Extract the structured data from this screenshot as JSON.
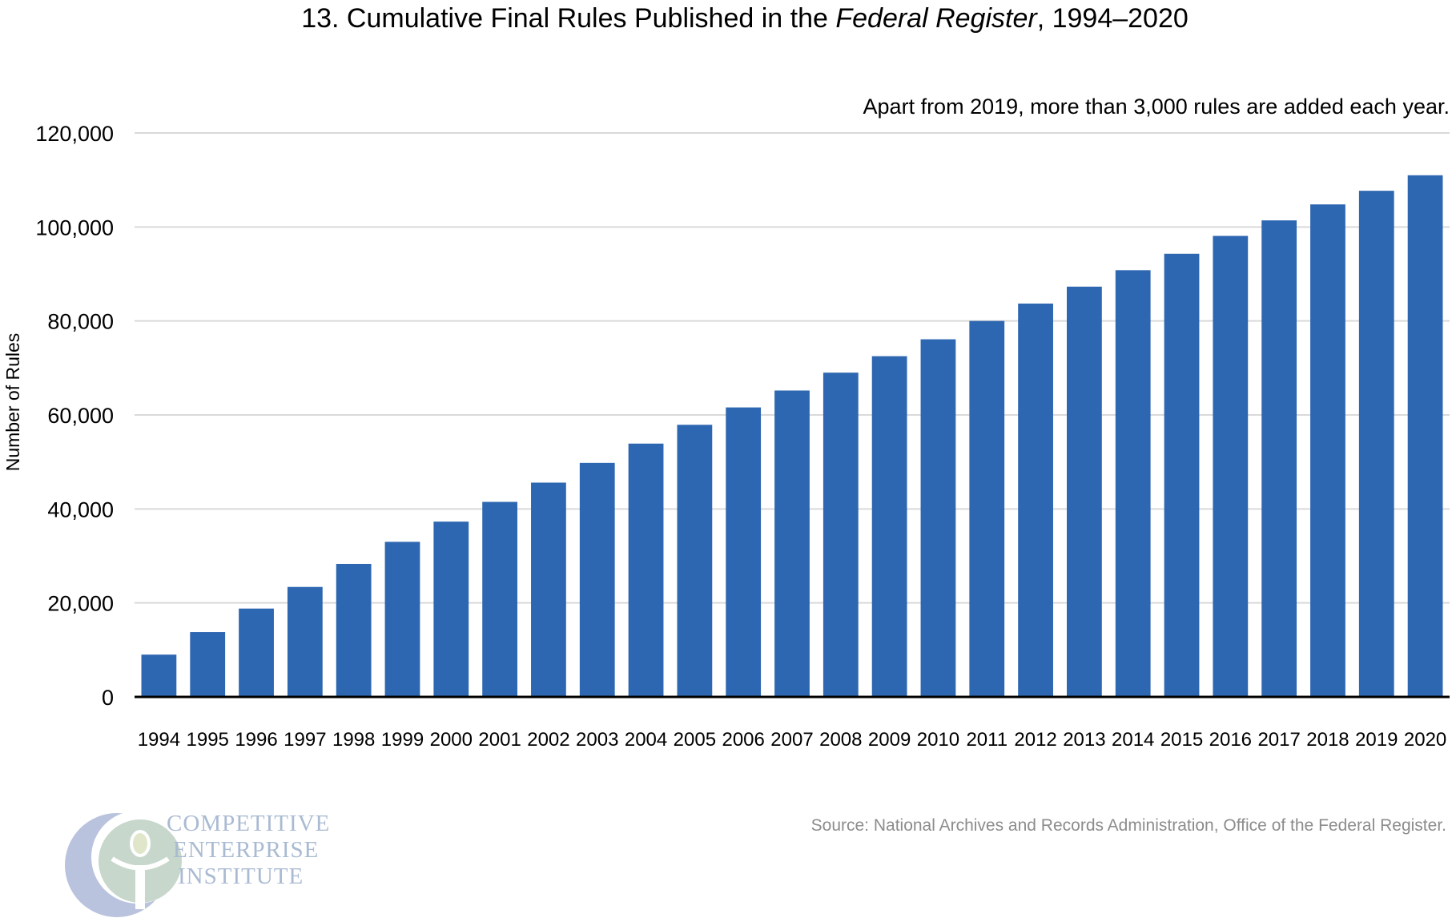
{
  "title_prefix": "13. Cumulative Final Rules Published in the ",
  "title_italic": "Federal Register",
  "title_suffix": ", 1994–2020",
  "annotation": "Apart from 2019, more than 3,000 rules are added each year.",
  "source": "Source: National Archives and Records Administration, Office of the Federal Register.",
  "logo": {
    "line1": "COMPETITIVE",
    "line2": "ENTERPRISE",
    "line3": "INSTITUTE"
  },
  "colors": {
    "bar": "#2e67b1",
    "grid": "#d9d9d9",
    "axis": "#000000",
    "source": "#8c8c8c",
    "logo_text": "#a9bad2"
  },
  "chart_data": {
    "type": "bar",
    "title": "13. Cumulative Final Rules Published in the Federal Register, 1994–2020",
    "xlabel": "",
    "ylabel": "Number of Rules",
    "ylim": [
      0,
      120000
    ],
    "yticks": [
      0,
      20000,
      40000,
      60000,
      80000,
      100000,
      120000
    ],
    "ytick_labels": [
      "0",
      "20,000",
      "40,000",
      "60,000",
      "80,000",
      "100,000",
      "120,000"
    ],
    "grid": true,
    "legend": "none",
    "categories": [
      "1994",
      "1995",
      "1996",
      "1997",
      "1998",
      "1999",
      "2000",
      "2001",
      "2002",
      "2003",
      "2004",
      "2005",
      "2006",
      "2007",
      "2008",
      "2009",
      "2010",
      "2011",
      "2012",
      "2013",
      "2014",
      "2015",
      "2016",
      "2017",
      "2018",
      "2019",
      "2020"
    ],
    "values": [
      9000,
      13800,
      18800,
      23400,
      28300,
      33000,
      37300,
      41500,
      45600,
      49800,
      53900,
      57900,
      61600,
      65200,
      69000,
      72500,
      76100,
      80000,
      83700,
      87300,
      90800,
      94300,
      98100,
      101400,
      104800,
      107700,
      111000
    ]
  }
}
